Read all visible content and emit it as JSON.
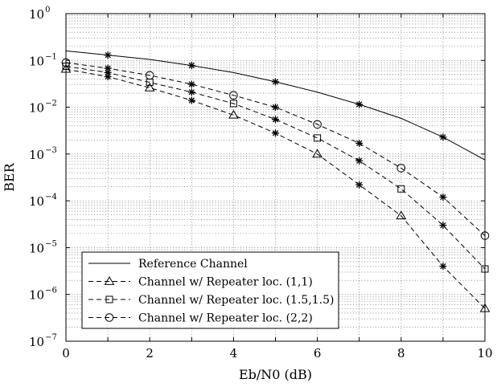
{
  "chart_data": {
    "type": "line",
    "title": "",
    "xlabel": "Eb/N0 (dB)",
    "ylabel": "BER",
    "xlim": [
      0,
      10
    ],
    "ylim": [
      1e-07,
      1
    ],
    "yscale": "log",
    "grid": true,
    "x_ticks": [
      "0",
      "2",
      "4",
      "6",
      "8",
      "10"
    ],
    "y_ticks": [
      {
        "base": "10",
        "exp": "0",
        "value": 1
      },
      {
        "base": "10",
        "exp": "−1",
        "value": 0.1
      },
      {
        "base": "10",
        "exp": "−2",
        "value": 0.01
      },
      {
        "base": "10",
        "exp": "−3",
        "value": 0.001
      },
      {
        "base": "10",
        "exp": "−4",
        "value": 0.0001
      },
      {
        "base": "10",
        "exp": "−5",
        "value": 1e-05
      },
      {
        "base": "10",
        "exp": "−6",
        "value": 1e-06
      },
      {
        "base": "10",
        "exp": "−7",
        "value": 1e-07
      }
    ],
    "legend_position": "bottom-left",
    "series": [
      {
        "name": "Reference Channel",
        "line_style": "solid",
        "marker": "none",
        "x": [
          0,
          1,
          2,
          3,
          4,
          5,
          6,
          7,
          8,
          9,
          10
        ],
        "y": [
          0.16,
          0.13,
          0.105,
          0.078,
          0.055,
          0.035,
          0.021,
          0.0115,
          0.0058,
          0.0023,
          0.00075
        ]
      },
      {
        "name": "Channel w/ Repeater loc. (1,1)",
        "line_style": "dashed",
        "marker": "triangle",
        "x": [
          0,
          1,
          2,
          3,
          4,
          5,
          6,
          7,
          8,
          9,
          10
        ],
        "y": [
          0.065,
          0.045,
          0.026,
          0.014,
          0.0068,
          0.0028,
          0.001,
          0.00022,
          4.8e-05,
          4e-06,
          5e-07
        ]
      },
      {
        "name": "Channel w/ Repeater loc. (1.5,1.5)",
        "line_style": "dashed",
        "marker": "square",
        "x": [
          0,
          1,
          2,
          3,
          4,
          5,
          6,
          7,
          8,
          9,
          10
        ],
        "y": [
          0.075,
          0.055,
          0.034,
          0.021,
          0.012,
          0.0055,
          0.0022,
          0.00072,
          0.00018,
          3e-05,
          3.5e-06
        ]
      },
      {
        "name": "Channel w/ Repeater loc. (2,2)",
        "line_style": "dashed",
        "marker": "circle",
        "x": [
          0,
          1,
          2,
          3,
          4,
          5,
          6,
          7,
          8,
          9,
          10
        ],
        "y": [
          0.09,
          0.068,
          0.048,
          0.031,
          0.018,
          0.01,
          0.0043,
          0.0017,
          0.0005,
          0.00012,
          1.8e-05
        ]
      }
    ]
  }
}
